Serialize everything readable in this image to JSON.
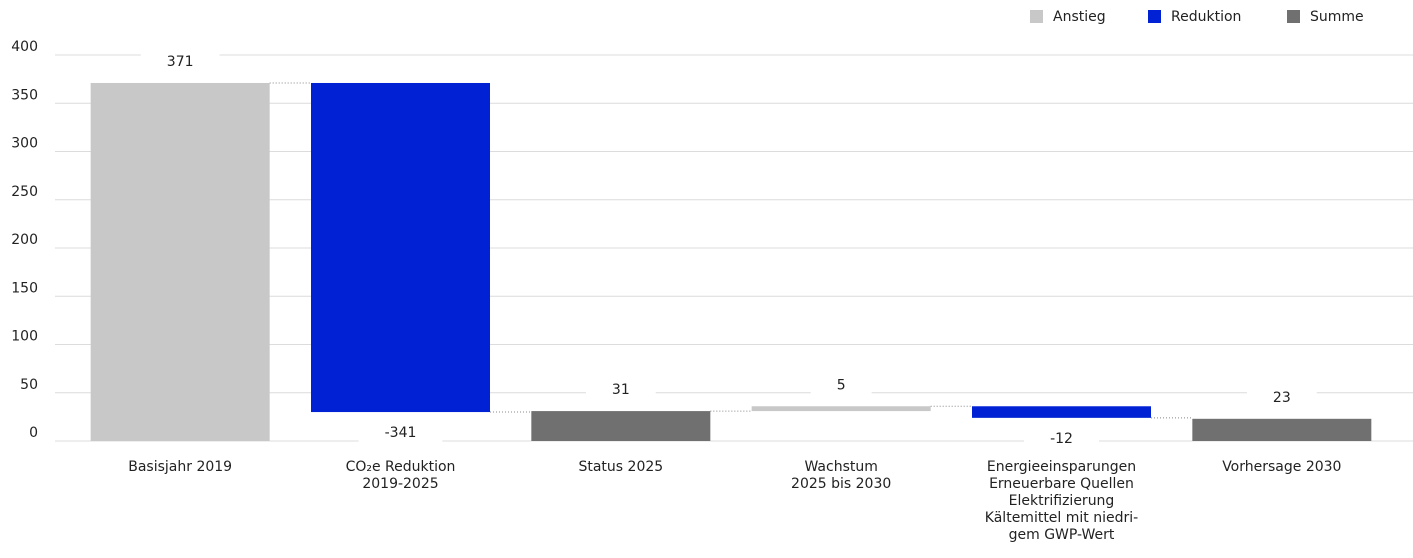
{
  "chart_data": {
    "type": "waterfall",
    "categories": [
      [
        "Basisjahr 2019"
      ],
      [
        "CO₂e Reduktion",
        "2019-2025"
      ],
      [
        "Status 2025"
      ],
      [
        "Wachstum",
        "2025 bis 2030"
      ],
      [
        "Energieeinsparungen",
        "Erneuerbare Quellen",
        "Elektrifizierung",
        "Kältemittel mit niedri-",
        "gem GWP-Wert"
      ],
      [
        "Vorhersage 2030"
      ]
    ],
    "series": [
      {
        "name": "Anstieg",
        "color": "#c8c8c8",
        "values": [
          371,
          null,
          null,
          5,
          null,
          null
        ]
      },
      {
        "name": "Reduktion",
        "color": "#0022d4",
        "values": [
          null,
          -341,
          null,
          null,
          -12,
          null
        ]
      },
      {
        "name": "Summe",
        "color": "#707070",
        "values": [
          null,
          null,
          31,
          null,
          null,
          23
        ]
      }
    ],
    "ylim": [
      0,
      400
    ],
    "yticks": [
      0,
      50,
      100,
      150,
      200,
      250,
      300,
      350,
      400
    ],
    "grid": true,
    "legend": "top-right"
  }
}
